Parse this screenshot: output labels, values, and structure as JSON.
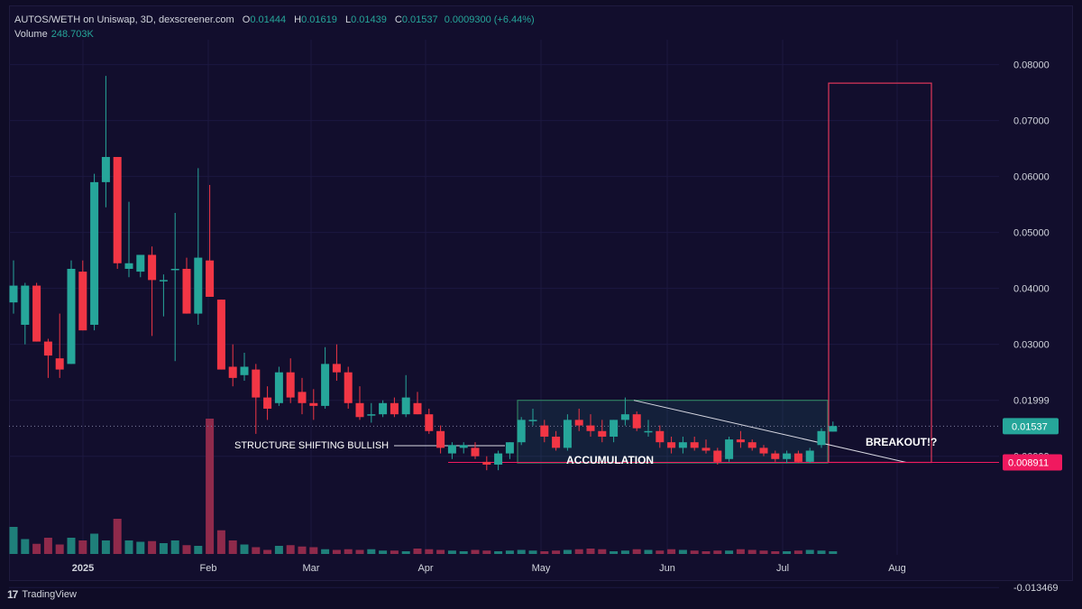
{
  "header": {
    "symbol": "AUTOS/WETH on Uniswap, 3D, dexscreener.com",
    "o_label": "O",
    "o_value": "0.01444",
    "h_label": "H",
    "h_value": "0.01619",
    "l_label": "L",
    "l_value": "0.01439",
    "c_label": "C",
    "c_value": "0.01537",
    "change": "0.0009300 (+6.44%)",
    "volume_label": "Volume",
    "volume_value": "248.703K"
  },
  "footer": {
    "brand": "TradingView"
  },
  "colors": {
    "bull": "#26a69a",
    "bear": "#f23645",
    "bull_volume": "#1f7f7a",
    "bear_volume": "#8f2a4b",
    "price_label_bg": "#26a69a",
    "level_label_bg": "#f0195f",
    "accumulation_box": "#2e7d5f",
    "breakout_box": "#e0375a"
  },
  "chart_data": {
    "type": "candlestick",
    "y_axis_ticks": [
      "0.08000",
      "0.07000",
      "0.06000",
      "0.05000",
      "0.04000",
      "0.03000",
      "0.01999",
      "0.00999",
      "-0.013469"
    ],
    "x_axis_ticks": [
      "2025",
      "Feb",
      "Mar",
      "Apr",
      "May",
      "Jun",
      "Jul",
      "Aug"
    ],
    "ylim": [
      -0.0135,
      0.082
    ],
    "last_price": "0.01537",
    "level_price": "0.008911",
    "grid": true,
    "candles": [
      {
        "o": 0.0375,
        "h": 0.045,
        "l": 0.0355,
        "c": 0.0405
      },
      {
        "o": 0.0335,
        "h": 0.041,
        "l": 0.03,
        "c": 0.0405
      },
      {
        "o": 0.0405,
        "h": 0.041,
        "l": 0.0305,
        "c": 0.0305
      },
      {
        "o": 0.0305,
        "h": 0.031,
        "l": 0.024,
        "c": 0.028
      },
      {
        "o": 0.0275,
        "h": 0.0355,
        "l": 0.024,
        "c": 0.0255
      },
      {
        "o": 0.0265,
        "h": 0.045,
        "l": 0.0265,
        "c": 0.0435
      },
      {
        "o": 0.043,
        "h": 0.045,
        "l": 0.0325,
        "c": 0.0325
      },
      {
        "o": 0.0335,
        "h": 0.0605,
        "l": 0.0325,
        "c": 0.059
      },
      {
        "o": 0.059,
        "h": 0.078,
        "l": 0.0545,
        "c": 0.0635
      },
      {
        "o": 0.0635,
        "h": 0.0635,
        "l": 0.0435,
        "c": 0.0445
      },
      {
        "o": 0.0435,
        "h": 0.0555,
        "l": 0.042,
        "c": 0.0445
      },
      {
        "o": 0.043,
        "h": 0.046,
        "l": 0.042,
        "c": 0.046
      },
      {
        "o": 0.046,
        "h": 0.0475,
        "l": 0.0315,
        "c": 0.0415
      },
      {
        "o": 0.0415,
        "h": 0.0425,
        "l": 0.035,
        "c": 0.0415
      },
      {
        "o": 0.0435,
        "h": 0.0535,
        "l": 0.027,
        "c": 0.0435
      },
      {
        "o": 0.0435,
        "h": 0.0455,
        "l": 0.0355,
        "c": 0.0355
      },
      {
        "o": 0.0355,
        "h": 0.0615,
        "l": 0.0335,
        "c": 0.0455
      },
      {
        "o": 0.045,
        "h": 0.0585,
        "l": 0.0385,
        "c": 0.0385
      },
      {
        "o": 0.038,
        "h": 0.038,
        "l": 0.0255,
        "c": 0.0255
      },
      {
        "o": 0.026,
        "h": 0.03,
        "l": 0.0225,
        "c": 0.024
      },
      {
        "o": 0.0245,
        "h": 0.0285,
        "l": 0.0235,
        "c": 0.026
      },
      {
        "o": 0.0255,
        "h": 0.0265,
        "l": 0.014,
        "c": 0.0205
      },
      {
        "o": 0.0205,
        "h": 0.0225,
        "l": 0.0165,
        "c": 0.0185
      },
      {
        "o": 0.0195,
        "h": 0.026,
        "l": 0.019,
        "c": 0.025
      },
      {
        "o": 0.025,
        "h": 0.0275,
        "l": 0.0195,
        "c": 0.0205
      },
      {
        "o": 0.0215,
        "h": 0.024,
        "l": 0.0175,
        "c": 0.0195
      },
      {
        "o": 0.0195,
        "h": 0.022,
        "l": 0.0165,
        "c": 0.019
      },
      {
        "o": 0.019,
        "h": 0.0295,
        "l": 0.0185,
        "c": 0.0265
      },
      {
        "o": 0.0265,
        "h": 0.03,
        "l": 0.0235,
        "c": 0.025
      },
      {
        "o": 0.025,
        "h": 0.026,
        "l": 0.0185,
        "c": 0.0195
      },
      {
        "o": 0.0195,
        "h": 0.0225,
        "l": 0.0165,
        "c": 0.017
      },
      {
        "o": 0.0175,
        "h": 0.0195,
        "l": 0.016,
        "c": 0.0175
      },
      {
        "o": 0.0175,
        "h": 0.02,
        "l": 0.017,
        "c": 0.0195
      },
      {
        "o": 0.0195,
        "h": 0.0205,
        "l": 0.017,
        "c": 0.0175
      },
      {
        "o": 0.0175,
        "h": 0.0245,
        "l": 0.017,
        "c": 0.0205
      },
      {
        "o": 0.0195,
        "h": 0.0215,
        "l": 0.0175,
        "c": 0.0175
      },
      {
        "o": 0.0175,
        "h": 0.0185,
        "l": 0.014,
        "c": 0.0145
      },
      {
        "o": 0.0145,
        "h": 0.0155,
        "l": 0.0105,
        "c": 0.0115
      },
      {
        "o": 0.0105,
        "h": 0.0125,
        "l": 0.0095,
        "c": 0.012
      },
      {
        "o": 0.0115,
        "h": 0.0125,
        "l": 0.0105,
        "c": 0.012
      },
      {
        "o": 0.0115,
        "h": 0.0125,
        "l": 0.0095,
        "c": 0.01
      },
      {
        "o": 0.009,
        "h": 0.01,
        "l": 0.0075,
        "c": 0.0085
      },
      {
        "o": 0.0085,
        "h": 0.011,
        "l": 0.0075,
        "c": 0.0105
      },
      {
        "o": 0.0105,
        "h": 0.0125,
        "l": 0.0095,
        "c": 0.0125
      },
      {
        "o": 0.0125,
        "h": 0.017,
        "l": 0.012,
        "c": 0.0165
      },
      {
        "o": 0.0165,
        "h": 0.0185,
        "l": 0.0155,
        "c": 0.0165
      },
      {
        "o": 0.0155,
        "h": 0.0165,
        "l": 0.0125,
        "c": 0.0135
      },
      {
        "o": 0.0135,
        "h": 0.0145,
        "l": 0.011,
        "c": 0.0115
      },
      {
        "o": 0.0115,
        "h": 0.0175,
        "l": 0.011,
        "c": 0.0165
      },
      {
        "o": 0.0165,
        "h": 0.0185,
        "l": 0.0145,
        "c": 0.0155
      },
      {
        "o": 0.0155,
        "h": 0.0175,
        "l": 0.0135,
        "c": 0.0145
      },
      {
        "o": 0.0145,
        "h": 0.0165,
        "l": 0.0125,
        "c": 0.0135
      },
      {
        "o": 0.0135,
        "h": 0.0165,
        "l": 0.0125,
        "c": 0.0165
      },
      {
        "o": 0.0165,
        "h": 0.0205,
        "l": 0.0155,
        "c": 0.0175
      },
      {
        "o": 0.0175,
        "h": 0.018,
        "l": 0.0145,
        "c": 0.015
      },
      {
        "o": 0.0145,
        "h": 0.0165,
        "l": 0.0135,
        "c": 0.0145
      },
      {
        "o": 0.0145,
        "h": 0.0155,
        "l": 0.0115,
        "c": 0.0125
      },
      {
        "o": 0.0125,
        "h": 0.0135,
        "l": 0.0105,
        "c": 0.0115
      },
      {
        "o": 0.0115,
        "h": 0.0135,
        "l": 0.0105,
        "c": 0.0125
      },
      {
        "o": 0.0125,
        "h": 0.0135,
        "l": 0.011,
        "c": 0.0115
      },
      {
        "o": 0.0115,
        "h": 0.013,
        "l": 0.0105,
        "c": 0.011
      },
      {
        "o": 0.011,
        "h": 0.0115,
        "l": 0.0085,
        "c": 0.009
      },
      {
        "o": 0.0095,
        "h": 0.0135,
        "l": 0.009,
        "c": 0.013
      },
      {
        "o": 0.013,
        "h": 0.0145,
        "l": 0.0115,
        "c": 0.0125
      },
      {
        "o": 0.0125,
        "h": 0.013,
        "l": 0.011,
        "c": 0.0115
      },
      {
        "o": 0.0115,
        "h": 0.012,
        "l": 0.01,
        "c": 0.0105
      },
      {
        "o": 0.0105,
        "h": 0.011,
        "l": 0.009,
        "c": 0.0095
      },
      {
        "o": 0.0095,
        "h": 0.011,
        "l": 0.0088,
        "c": 0.0105
      },
      {
        "o": 0.0105,
        "h": 0.011,
        "l": 0.0088,
        "c": 0.009
      },
      {
        "o": 0.009,
        "h": 0.0115,
        "l": 0.0088,
        "c": 0.011
      },
      {
        "o": 0.012,
        "h": 0.015,
        "l": 0.0115,
        "c": 0.0145
      },
      {
        "o": 0.0144,
        "h": 0.0162,
        "l": 0.0144,
        "c": 0.0154
      }
    ],
    "volumes": [
      0.4,
      0.22,
      0.15,
      0.24,
      0.14,
      0.24,
      0.2,
      0.3,
      0.2,
      0.52,
      0.2,
      0.18,
      0.19,
      0.16,
      0.2,
      0.13,
      0.12,
      2.0,
      0.35,
      0.2,
      0.14,
      0.1,
      0.06,
      0.12,
      0.13,
      0.11,
      0.1,
      0.07,
      0.06,
      0.07,
      0.06,
      0.07,
      0.05,
      0.05,
      0.04,
      0.08,
      0.07,
      0.06,
      0.05,
      0.04,
      0.06,
      0.05,
      0.04,
      0.05,
      0.06,
      0.05,
      0.04,
      0.05,
      0.06,
      0.07,
      0.08,
      0.07,
      0.04,
      0.05,
      0.07,
      0.06,
      0.05,
      0.07,
      0.06,
      0.05,
      0.04,
      0.05,
      0.05,
      0.07,
      0.06,
      0.05,
      0.04,
      0.04,
      0.05,
      0.06,
      0.05,
      0.04
    ],
    "annotations": {
      "structure": "STRUCTURE SHIFTING BULLISH",
      "accumulation": "ACCUMULATION",
      "breakout": "BREAKOUT!?"
    }
  }
}
